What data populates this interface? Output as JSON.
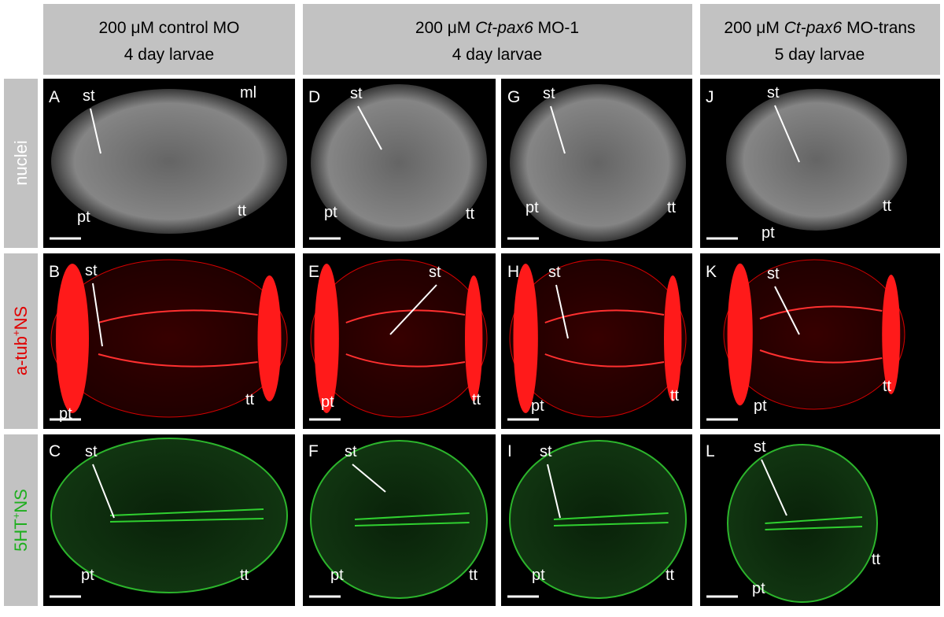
{
  "headers": [
    {
      "line1": "200 μM control MO",
      "line2": "4 day larvae"
    },
    {
      "prefix": "200 μM",
      "gene": "Ct-pax6",
      "suffix": "MO-1",
      "line2": "4 day larvae"
    },
    {
      "prefix": "200 μM",
      "gene": "Ct-pax6",
      "suffix": "MO-trans",
      "line2": "5 day larvae"
    }
  ],
  "rows": [
    {
      "label": "nuclei"
    },
    {
      "label": "a-tub",
      "sup": "+",
      "rest": "NS"
    },
    {
      "label": "5HT",
      "sup": "+",
      "rest": "NS"
    }
  ],
  "panels": [
    {
      "letter": "A",
      "labels": [
        "st",
        "ml",
        "pt",
        "tt"
      ]
    },
    {
      "letter": "D",
      "labels": [
        "st",
        "pt",
        "tt"
      ]
    },
    {
      "letter": "G",
      "labels": [
        "st",
        "pt",
        "tt"
      ]
    },
    {
      "letter": "J",
      "labels": [
        "st",
        "tt",
        "pt"
      ]
    },
    {
      "letter": "B",
      "labels": [
        "st",
        "pt",
        "tt"
      ]
    },
    {
      "letter": "E",
      "labels": [
        "st",
        "pt",
        "tt"
      ]
    },
    {
      "letter": "H",
      "labels": [
        "st",
        "pt",
        "tt"
      ]
    },
    {
      "letter": "K",
      "labels": [
        "st",
        "tt",
        "pt"
      ]
    },
    {
      "letter": "C",
      "labels": [
        "st",
        "pt",
        "tt"
      ]
    },
    {
      "letter": "F",
      "labels": [
        "st",
        "pt",
        "tt"
      ]
    },
    {
      "letter": "I",
      "labels": [
        "st",
        "pt",
        "tt"
      ]
    },
    {
      "letter": "L",
      "labels": [
        "st",
        "tt",
        "pt"
      ]
    }
  ]
}
